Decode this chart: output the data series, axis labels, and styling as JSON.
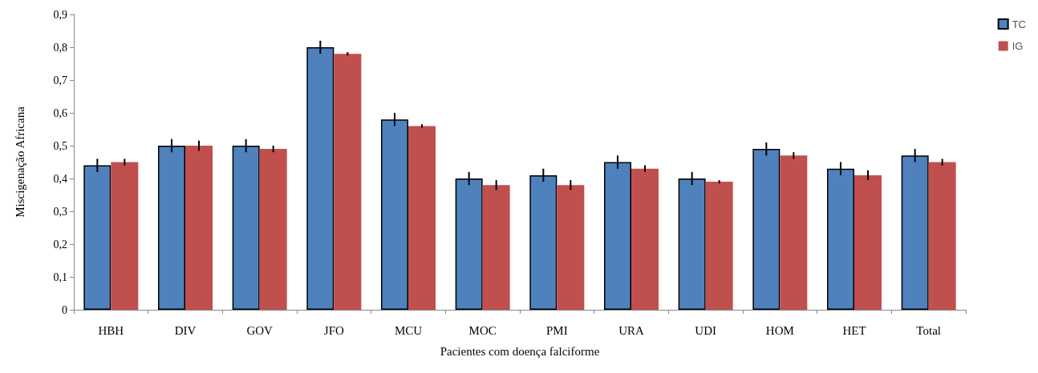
{
  "chart_data": {
    "type": "bar",
    "xlabel": "Pacientes com doença falciforme",
    "ylabel": "Miscigenação Africana",
    "categories": [
      "HBH",
      "DIV",
      "GOV",
      "JFO",
      "MCU",
      "MOC",
      "PMI",
      "URA",
      "UDI",
      "HOM",
      "HET",
      "Total"
    ],
    "series": [
      {
        "name": "TC",
        "color": "#4f81bd",
        "values": [
          0.44,
          0.5,
          0.5,
          0.8,
          0.58,
          0.4,
          0.41,
          0.45,
          0.4,
          0.49,
          0.43,
          0.47
        ],
        "errors": [
          0.02,
          0.02,
          0.02,
          0.02,
          0.02,
          0.02,
          0.02,
          0.02,
          0.02,
          0.02,
          0.02,
          0.02
        ]
      },
      {
        "name": "IG",
        "color": "#c0504d",
        "values": [
          0.45,
          0.5,
          0.49,
          0.78,
          0.56,
          0.38,
          0.38,
          0.43,
          0.39,
          0.47,
          0.41,
          0.45
        ],
        "errors": [
          0.01,
          0.015,
          0.01,
          0.005,
          0.005,
          0.015,
          0.015,
          0.01,
          0.005,
          0.01,
          0.015,
          0.01
        ]
      }
    ],
    "ylim": [
      0,
      0.9
    ],
    "yticks": [
      0,
      {
        "value": 0.1,
        "label": "0,1"
      },
      {
        "value": 0.2,
        "label": "0,2"
      },
      {
        "value": 0.3,
        "label": "0,3"
      },
      {
        "value": 0.4,
        "label": "0,4"
      },
      {
        "value": 0.5,
        "label": "0,5"
      },
      {
        "value": 0.6,
        "label": "0,6"
      },
      {
        "value": 0.7,
        "label": "0,7"
      },
      {
        "value": 0.8,
        "label": "0,8"
      },
      {
        "value": 0.9,
        "label": "0,9"
      }
    ],
    "grid": false,
    "legend": "top right"
  }
}
